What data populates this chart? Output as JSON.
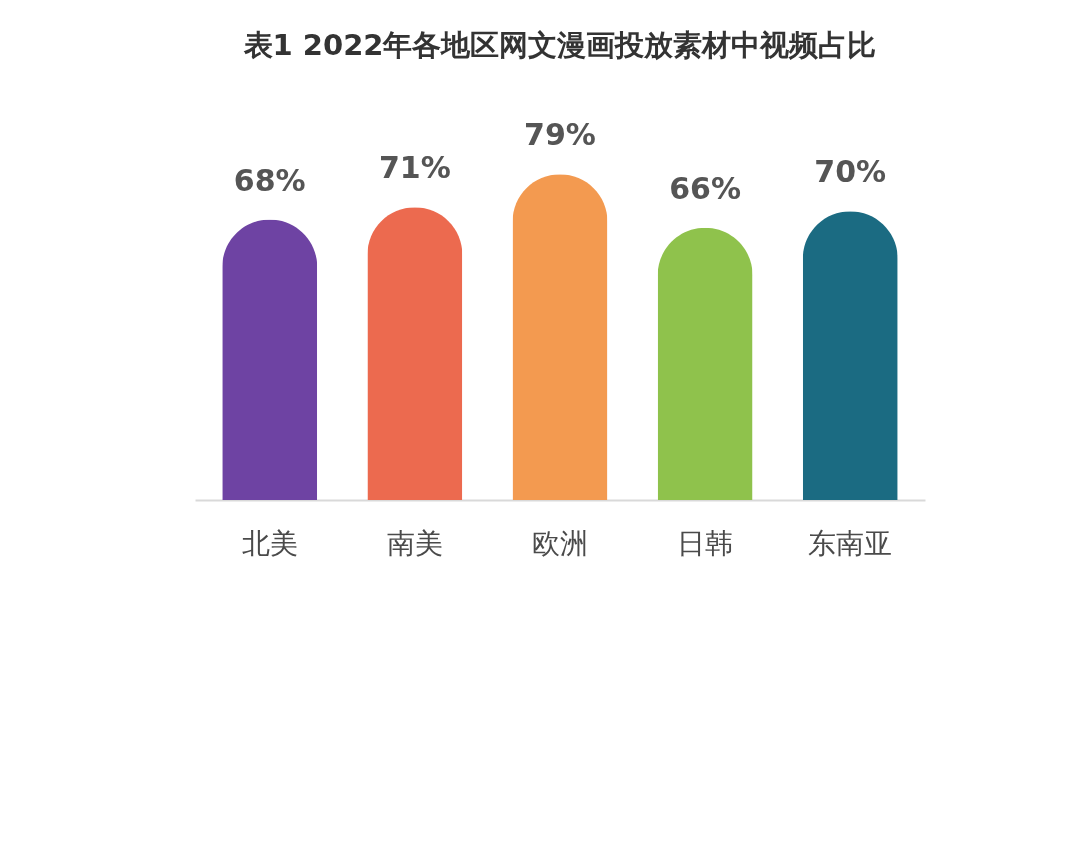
{
  "chart_data": {
    "type": "bar",
    "title": "表1  2022年各地区网文漫画投放素材中视频占比",
    "categories": [
      "北美",
      "南美",
      "欧洲",
      "日韩",
      "东南亚"
    ],
    "values": [
      68,
      71,
      79,
      66,
      70
    ],
    "value_labels": [
      "68%",
      "71%",
      "79%",
      "66%",
      "70%"
    ],
    "colors": [
      "#6e43a3",
      "#ec6a4f",
      "#f39a50",
      "#8fc24c",
      "#1b6b82"
    ]
  }
}
